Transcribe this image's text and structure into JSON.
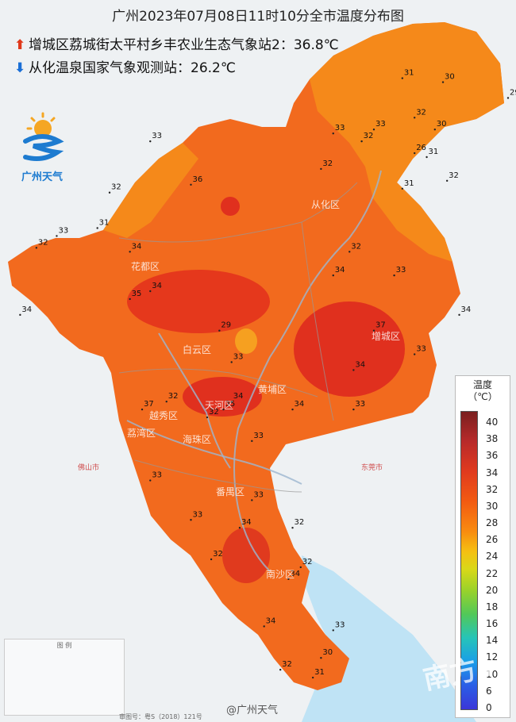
{
  "title": "广州2023年07月08日11时10分全市温度分布图",
  "max_station": {
    "icon": "up-arrow-icon",
    "name": "增城区荔城街太平村乡丰农业生态气象站2",
    "value": "36.8℃"
  },
  "min_station": {
    "icon": "down-arrow-icon",
    "name": "从化温泉国家气象观测站",
    "value": "26.2℃"
  },
  "logo_text": "广州天气",
  "legend": {
    "title_line1": "温度",
    "title_line2": "（℃）",
    "ticks": [
      "40",
      "38",
      "36",
      "34",
      "32",
      "30",
      "28",
      "26",
      "24",
      "22",
      "20",
      "18",
      "16",
      "14",
      "12",
      "10",
      "6",
      "0"
    ]
  },
  "districts": [
    "从化区",
    "花都区",
    "白云区",
    "天河区",
    "越秀区",
    "荔湾区",
    "海珠区",
    "黄埔区",
    "增城区",
    "番禺区",
    "南沙区"
  ],
  "cities_outside": [
    "佛山市",
    "东莞市"
  ],
  "readings": [
    {
      "v": "33",
      "lon": 113.92,
      "lat": 23.92
    },
    {
      "v": "31",
      "lon": 113.88,
      "lat": 23.88
    },
    {
      "v": "32",
      "lon": 113.94,
      "lat": 23.85
    },
    {
      "v": "31",
      "lon": 113.97,
      "lat": 23.88
    },
    {
      "v": "29",
      "lon": 113.98,
      "lat": 23.77
    },
    {
      "v": "32",
      "lon": 113.88,
      "lat": 23.83
    },
    {
      "v": "30",
      "lon": 113.82,
      "lat": 23.81
    },
    {
      "v": "31",
      "lon": 113.72,
      "lat": 23.82
    },
    {
      "v": "32",
      "lon": 113.75,
      "lat": 23.72
    },
    {
      "v": "30",
      "lon": 113.8,
      "lat": 23.69
    },
    {
      "v": "31",
      "lon": 113.78,
      "lat": 23.62
    },
    {
      "v": "26",
      "lon": 113.75,
      "lat": 23.63
    },
    {
      "v": "32",
      "lon": 113.83,
      "lat": 23.56
    },
    {
      "v": "33",
      "lon": 113.65,
      "lat": 23.69
    },
    {
      "v": "32",
      "lon": 113.62,
      "lat": 23.66
    },
    {
      "v": "33",
      "lon": 113.55,
      "lat": 23.68
    },
    {
      "v": "31",
      "lon": 113.72,
      "lat": 23.54
    },
    {
      "v": "32",
      "lon": 113.52,
      "lat": 23.59
    },
    {
      "v": "36",
      "lon": 113.2,
      "lat": 23.55
    },
    {
      "v": "33",
      "lon": 113.1,
      "lat": 23.66
    },
    {
      "v": "32",
      "lon": 113.0,
      "lat": 23.53
    },
    {
      "v": "31",
      "lon": 112.97,
      "lat": 23.44
    },
    {
      "v": "32",
      "lon": 112.82,
      "lat": 23.39
    },
    {
      "v": "33",
      "lon": 112.87,
      "lat": 23.42
    },
    {
      "v": "34",
      "lon": 113.05,
      "lat": 23.38
    },
    {
      "v": "34",
      "lon": 112.78,
      "lat": 23.22
    },
    {
      "v": "35",
      "lon": 113.05,
      "lat": 23.26
    },
    {
      "v": "34",
      "lon": 113.1,
      "lat": 23.28
    },
    {
      "v": "29",
      "lon": 113.27,
      "lat": 23.18
    },
    {
      "v": "33",
      "lon": 113.3,
      "lat": 23.1
    },
    {
      "v": "32",
      "lon": 113.14,
      "lat": 23.0
    },
    {
      "v": "37",
      "lon": 113.08,
      "lat": 22.98
    },
    {
      "v": "34",
      "lon": 113.3,
      "lat": 23.0
    },
    {
      "v": "35",
      "lon": 113.28,
      "lat": 22.98
    },
    {
      "v": "32",
      "lon": 113.24,
      "lat": 22.96
    },
    {
      "v": "33",
      "lon": 113.35,
      "lat": 22.9
    },
    {
      "v": "34",
      "lon": 113.55,
      "lat": 23.32
    },
    {
      "v": "32",
      "lon": 113.59,
      "lat": 23.38
    },
    {
      "v": "33",
      "lon": 113.7,
      "lat": 23.32
    },
    {
      "v": "37",
      "lon": 113.65,
      "lat": 23.18
    },
    {
      "v": "34",
      "lon": 113.6,
      "lat": 23.08
    },
    {
      "v": "33",
      "lon": 113.75,
      "lat": 23.12
    },
    {
      "v": "34",
      "lon": 113.86,
      "lat": 23.22
    },
    {
      "v": "33",
      "lon": 113.6,
      "lat": 22.98
    },
    {
      "v": "34",
      "lon": 113.45,
      "lat": 22.98
    },
    {
      "v": "33",
      "lon": 113.35,
      "lat": 22.75
    },
    {
      "v": "34",
      "lon": 113.32,
      "lat": 22.68
    },
    {
      "v": "32",
      "lon": 113.45,
      "lat": 22.68
    },
    {
      "v": "32",
      "lon": 113.47,
      "lat": 22.58
    },
    {
      "v": "34",
      "lon": 113.44,
      "lat": 22.55
    },
    {
      "v": "33",
      "lon": 113.55,
      "lat": 22.42
    },
    {
      "v": "30",
      "lon": 113.52,
      "lat": 22.35
    },
    {
      "v": "32",
      "lon": 113.42,
      "lat": 22.32
    },
    {
      "v": "31",
      "lon": 113.5,
      "lat": 22.3
    },
    {
      "v": "34",
      "lon": 113.38,
      "lat": 22.43
    },
    {
      "v": "33",
      "lon": 113.1,
      "lat": 22.8
    },
    {
      "v": "33",
      "lon": 113.2,
      "lat": 22.7
    },
    {
      "v": "32",
      "lon": 113.25,
      "lat": 22.6
    }
  ],
  "credit": "@广州天气",
  "map_note": "审图号：粤S（2018）121号",
  "watermark": "南方+",
  "legend_box_title": "图  例"
}
